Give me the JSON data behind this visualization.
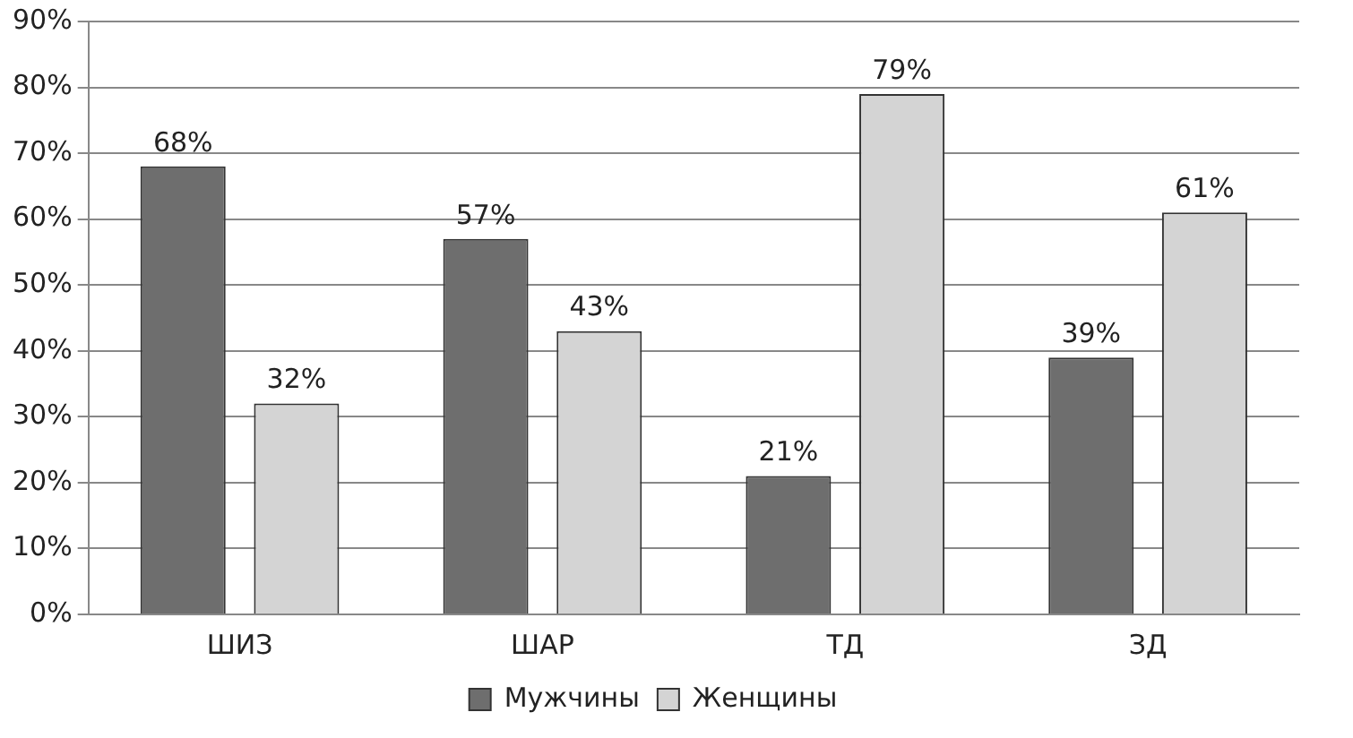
{
  "chart_data": {
    "type": "bar",
    "categories": [
      "ШИЗ",
      "ШАР",
      "ТД",
      "ЗД"
    ],
    "series": [
      {
        "name": "Мужчины",
        "color": "#6e6e6e",
        "values": [
          68,
          57,
          21,
          39
        ],
        "value_labels": [
          "68%",
          "57%",
          "21%",
          "39%"
        ]
      },
      {
        "name": "Женщины",
        "color": "#d4d4d4",
        "values": [
          32,
          43,
          79,
          61
        ],
        "value_labels": [
          "32%",
          "43%",
          "79%",
          "61%"
        ]
      }
    ],
    "ylim": [
      0,
      90
    ],
    "yticks": [
      {
        "value": 0,
        "label": "0%"
      },
      {
        "value": 10,
        "label": "10%"
      },
      {
        "value": 20,
        "label": "20%"
      },
      {
        "value": 30,
        "label": "30%"
      },
      {
        "value": 40,
        "label": "40%"
      },
      {
        "value": 50,
        "label": "50%"
      },
      {
        "value": 60,
        "label": "60%"
      },
      {
        "value": 70,
        "label": "70%"
      },
      {
        "value": 80,
        "label": "80%"
      },
      {
        "value": 90,
        "label": "90%"
      }
    ],
    "grid": "y",
    "legend": "bottom"
  }
}
